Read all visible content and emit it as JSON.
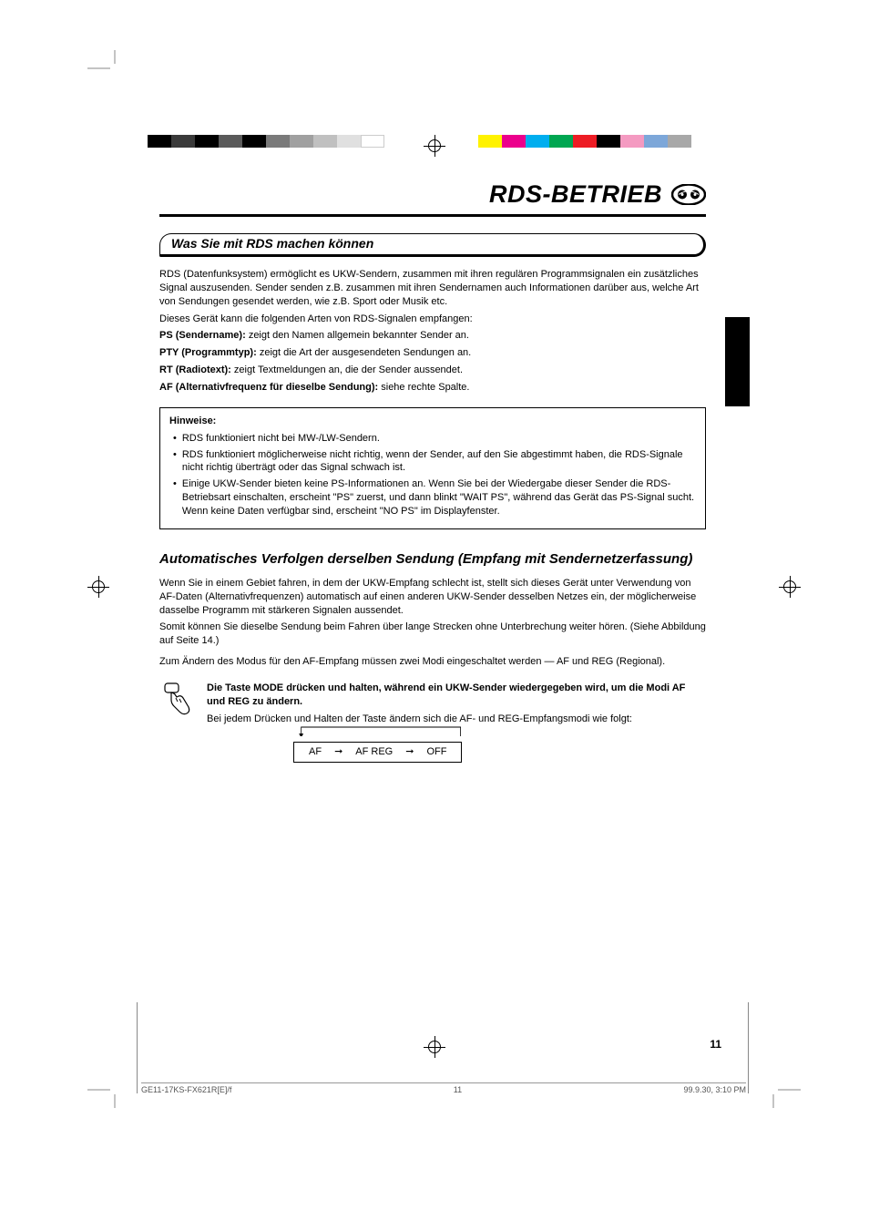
{
  "header": {
    "title": "RDS-BETRIEB"
  },
  "section": {
    "title": "Was Sie mit RDS machen können"
  },
  "intro": {
    "p1": "RDS (Datenfunksystem) ermöglicht es UKW-Sendern, zusammen mit ihren regulären Programmsignalen ein zusätzliches Signal auszusenden. Sender senden z.B. zusammen mit ihren Sendernamen auch Informationen darüber aus, welche Art von Sendungen gesendet werden, wie z.B. Sport oder Musik etc.",
    "p2": "Dieses Gerät kann die folgenden Arten von RDS-Signalen empfangen:",
    "ps_label": "PS (Sendername):",
    "ps_text": "zeigt den Namen allgemein bekannter Sender an.",
    "pty_label": "PTY (Programmtyp):",
    "pty_text": "zeigt die Art der ausgesendeten Sendungen an.",
    "rt_label": "RT (Radiotext):",
    "rt_text": "zeigt Textmeldungen an, die der Sender aussendet.",
    "af_label": "AF (Alternativfrequenz für dieselbe Sendung):",
    "af_text": "siehe rechte Spalte."
  },
  "notes": {
    "title": "Hinweise:",
    "items": [
      "RDS funktioniert nicht bei MW-/LW-Sendern.",
      "RDS funktioniert möglicherweise nicht richtig, wenn der Sender, auf den Sie abgestimmt haben, die RDS-Signale nicht richtig überträgt oder das Signal schwach ist.",
      "Einige UKW-Sender bieten keine PS-Informationen an. Wenn Sie bei der Wiedergabe dieser Sender die RDS-Betriebsart einschalten, erscheint \"PS\" zuerst, und dann blinkt \"WAIT PS\", während das Gerät das PS-Signal sucht. Wenn keine Daten verfügbar sind, erscheint \"NO PS\" im Displayfenster."
    ]
  },
  "subsection": {
    "title": "Automatisches Verfolgen derselben Sendung (Empfang mit Sendernetzerfassung)",
    "p1": "Wenn Sie in einem Gebiet fahren, in dem der UKW-Empfang schlecht ist, stellt sich dieses Gerät unter Verwendung von AF-Daten (Alternativfrequenzen) automatisch auf einen anderen UKW-Sender desselben Netzes ein, der möglicherweise dasselbe Programm mit stärkeren Signalen aussendet.",
    "p2": "Somit können Sie dieselbe Sendung beim Fahren über lange Strecken ohne Unterbrechung weiter hören. (Siehe Abbildung auf Seite 14.)",
    "p3": "Zum Ändern des Modus für den AF-Empfang müssen zwei Modi eingeschaltet werden — AF und REG (Regional).",
    "step_label": "Die Taste MODE drücken und halten, während ein UKW-Sender wiedergegeben wird, um die Modi AF und REG zu ändern.",
    "step_text": "Bei jedem Drücken und Halten der Taste ändern sich die AF- und REG-Empfangsmodi wie folgt:"
  },
  "flow": {
    "items": [
      "AF",
      "AF REG",
      "OFF"
    ]
  },
  "footer": {
    "left": "GE11-17KS-FX621R[E]/f",
    "page": "11",
    "right": "99.9.30, 3:10 PM"
  },
  "page_number": "11",
  "color_bar_left": [
    "#000000",
    "#3a3a3a",
    "#000000",
    "#5a5a5a",
    "#000000",
    "#7a7a7a",
    "#a0a0a0",
    "#c0c0c0",
    "#e0e0e0",
    "#ffffff"
  ],
  "color_bar_right": [
    "#fff200",
    "#ec008c",
    "#00aeef",
    "#00a651",
    "#ed1c24",
    "#000000",
    "#f49ac1",
    "#7da7d9",
    "#a8a8a8"
  ]
}
